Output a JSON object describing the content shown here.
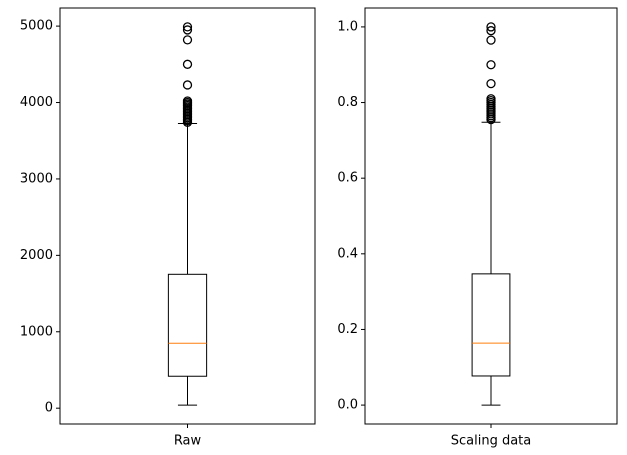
{
  "chart_data": [
    {
      "type": "box",
      "categories": [
        "Raw"
      ],
      "stats": {
        "whislo": 40,
        "q1": 418,
        "med": 850,
        "q3": 1752,
        "whishi": 3725,
        "fliers": [
          3740,
          3760,
          3780,
          3800,
          3820,
          3840,
          3860,
          3880,
          3900,
          3920,
          3940,
          3960,
          3980,
          4000,
          4020,
          4230,
          4500,
          4820,
          4950,
          4990
        ]
      },
      "box_color": "#000000",
      "median_color": "#ff7f0e",
      "ylim": [
        -207,
        5237
      ],
      "yticks": [
        0,
        1000,
        2000,
        3000,
        4000,
        5000
      ]
    },
    {
      "type": "box",
      "categories": [
        "Scaling data"
      ],
      "stats": {
        "whislo": 0,
        "q1": 0.077,
        "med": 0.164,
        "q3": 0.347,
        "whishi": 0.748,
        "fliers": [
          0.755,
          0.76,
          0.765,
          0.77,
          0.775,
          0.78,
          0.785,
          0.79,
          0.795,
          0.8,
          0.805,
          0.81,
          0.85,
          0.9,
          0.965,
          0.99,
          1.0
        ]
      },
      "box_color": "#000000",
      "median_color": "#ff7f0e",
      "ylim": [
        -0.05,
        1.05
      ],
      "yticks": [
        {
          "value": 0,
          "label": "0.0"
        },
        0.2,
        0.4,
        0.6,
        0.8,
        {
          "value": 1,
          "label": "1.0"
        }
      ]
    }
  ]
}
